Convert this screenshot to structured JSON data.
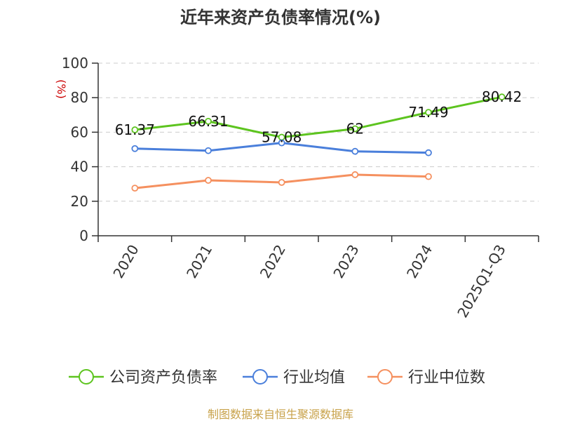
{
  "chart_data": {
    "type": "line",
    "title": "近年来资产负债率情况(%)",
    "ylabel": "(%)",
    "xlabel": "",
    "categories": [
      "2020",
      "2021",
      "2022",
      "2023",
      "2024",
      "2025Q1-Q3"
    ],
    "ylim": [
      0,
      100
    ],
    "yticks": [
      "0",
      "20",
      "40",
      "60",
      "80",
      "100"
    ],
    "grid": true,
    "legend_position": "bottom",
    "series": [
      {
        "name": "公司资产负债率",
        "color": "#5dc41f",
        "values": [
          61.37,
          66.31,
          57.08,
          62,
          71.49,
          80.42
        ],
        "labels": [
          "61.37",
          "66.31",
          "57.08",
          "62",
          "71.49",
          "80.42"
        ]
      },
      {
        "name": "行业均值",
        "color": "#4a7fdb",
        "values": [
          50.5,
          49.3,
          53.8,
          48.9,
          48.1,
          null
        ]
      },
      {
        "name": "行业中位数",
        "color": "#f5905f",
        "values": [
          27.6,
          32.1,
          30.9,
          35.4,
          34.3,
          null
        ]
      }
    ]
  },
  "footer": {
    "source": "制图数据来自恒生聚源数据库"
  }
}
